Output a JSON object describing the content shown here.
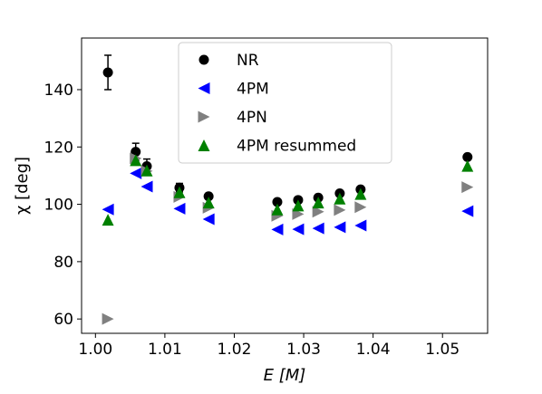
{
  "chart_data": {
    "type": "scatter",
    "title": "",
    "xlabel": "E [M]",
    "ylabel": "χ [deg]",
    "xlim": [
      0.998,
      1.0565
    ],
    "ylim": [
      55,
      158
    ],
    "xticks": [
      1.0,
      1.01,
      1.02,
      1.03,
      1.04,
      1.05
    ],
    "xtick_labels": [
      "1.00",
      "1.01",
      "1.02",
      "1.03",
      "1.04",
      "1.05"
    ],
    "yticks": [
      60,
      80,
      100,
      120,
      140
    ],
    "ytick_labels": [
      "60",
      "80",
      "100",
      "120",
      "140"
    ],
    "grid": false,
    "legend_position": "top-center",
    "series": [
      {
        "name": "NR",
        "marker": "circle",
        "color": "#000000",
        "points": [
          {
            "x": 1.0018,
            "y": 146.0,
            "err": 6.0
          },
          {
            "x": 1.0058,
            "y": 118.3,
            "err": 3.0
          },
          {
            "x": 1.0074,
            "y": 113.3,
            "err": 2.5
          },
          {
            "x": 1.0121,
            "y": 105.8,
            "err": 1.5
          },
          {
            "x": 1.0163,
            "y": 102.8,
            "err": 0.8
          },
          {
            "x": 1.0262,
            "y": 100.8,
            "err": 0.5
          },
          {
            "x": 1.0292,
            "y": 101.5,
            "err": 0.5
          },
          {
            "x": 1.0321,
            "y": 102.3,
            "err": 0.5
          },
          {
            "x": 1.0352,
            "y": 103.8,
            "err": 0.5
          },
          {
            "x": 1.0382,
            "y": 105.2,
            "err": 0.5
          },
          {
            "x": 1.0536,
            "y": 116.5,
            "err": 0.5
          }
        ]
      },
      {
        "name": "4PM",
        "marker": "triangle-left",
        "color": "#0000ff",
        "points": [
          {
            "x": 1.0018,
            "y": 98.2
          },
          {
            "x": 1.0058,
            "y": 110.8
          },
          {
            "x": 1.0074,
            "y": 106.2
          },
          {
            "x": 1.0121,
            "y": 98.5
          },
          {
            "x": 1.0163,
            "y": 94.8
          },
          {
            "x": 1.0262,
            "y": 91.2
          },
          {
            "x": 1.0292,
            "y": 91.3
          },
          {
            "x": 1.0321,
            "y": 91.6
          },
          {
            "x": 1.0352,
            "y": 92.0
          },
          {
            "x": 1.0382,
            "y": 92.6
          },
          {
            "x": 1.0536,
            "y": 97.6
          }
        ]
      },
      {
        "name": "4PN",
        "marker": "triangle-right",
        "color": "#808080",
        "points": [
          {
            "x": 1.0018,
            "y": 60.0
          },
          {
            "x": 1.0058,
            "y": 116.0
          },
          {
            "x": 1.0074,
            "y": 111.6
          },
          {
            "x": 1.0121,
            "y": 102.6
          },
          {
            "x": 1.0163,
            "y": 98.8
          },
          {
            "x": 1.0262,
            "y": 96.0
          },
          {
            "x": 1.0292,
            "y": 96.6
          },
          {
            "x": 1.0321,
            "y": 97.4
          },
          {
            "x": 1.0352,
            "y": 98.0
          },
          {
            "x": 1.0382,
            "y": 99.0
          },
          {
            "x": 1.0536,
            "y": 106.0
          }
        ]
      },
      {
        "name": "4PM resummed",
        "marker": "triangle-up",
        "color": "#008000",
        "points": [
          {
            "x": 1.0018,
            "y": 94.6
          },
          {
            "x": 1.0058,
            "y": 115.4
          },
          {
            "x": 1.0074,
            "y": 111.8
          },
          {
            "x": 1.0121,
            "y": 104.2
          },
          {
            "x": 1.0163,
            "y": 100.6
          },
          {
            "x": 1.0262,
            "y": 98.2
          },
          {
            "x": 1.0292,
            "y": 99.6
          },
          {
            "x": 1.0321,
            "y": 100.6
          },
          {
            "x": 1.0352,
            "y": 102.0
          },
          {
            "x": 1.0382,
            "y": 103.6
          },
          {
            "x": 1.0536,
            "y": 113.4
          }
        ]
      }
    ]
  }
}
